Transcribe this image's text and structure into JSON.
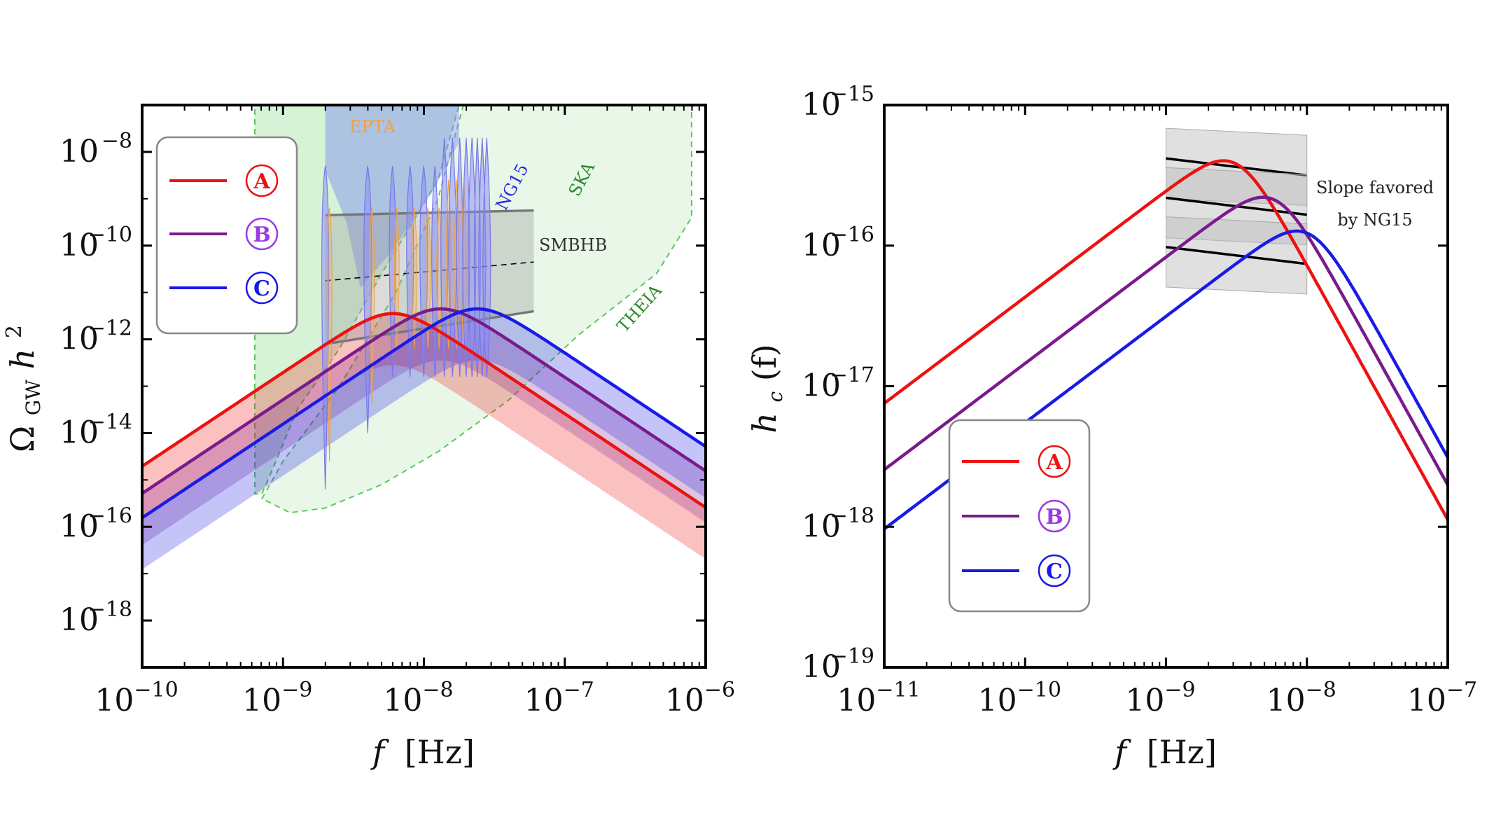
{
  "chart_data": [
    {
      "type": "line",
      "name": "left-panel",
      "xscale": "log",
      "yscale": "log",
      "xlim": [
        1e-10,
        1e-06
      ],
      "ylim": [
        1e-19,
        1e-07
      ],
      "xlabel": "f [Hz]",
      "xlabel_var": "f",
      "xlabel_unit": "[Hz]",
      "ylabel": "Ω_GW h²",
      "ylabel_main": "Ω",
      "ylabel_sub": "GW",
      "ylabel_var": "h",
      "ylabel_sup": "2",
      "x_ticks": [
        {
          "base": "10",
          "exp": "−10",
          "log": -10
        },
        {
          "base": "10",
          "exp": "−9",
          "log": -9
        },
        {
          "base": "10",
          "exp": "−8",
          "log": -8
        },
        {
          "base": "10",
          "exp": "−7",
          "log": -7
        },
        {
          "base": "10",
          "exp": "−6",
          "log": -6
        }
      ],
      "y_ticks": [
        {
          "base": "10",
          "exp": "−8",
          "log": -8
        },
        {
          "base": "10",
          "exp": "−10",
          "log": -10
        },
        {
          "base": "10",
          "exp": "−12",
          "log": -12
        },
        {
          "base": "10",
          "exp": "−14",
          "log": -14
        },
        {
          "base": "10",
          "exp": "−16",
          "log": -16
        },
        {
          "base": "10",
          "exp": "−18",
          "log": -18
        }
      ],
      "series": [
        {
          "name": "A",
          "symbol": "Ⓐ",
          "color": "#ee1111",
          "peak_log_f": -8.22,
          "peak_log_omega": -11.45,
          "band_width_dex": 1.1
        },
        {
          "name": "B",
          "symbol": "Ⓑ",
          "color": "#7a1a8c",
          "peak_log_f": -7.88,
          "peak_log_omega": -11.35,
          "band_width_dex": 1.1
        },
        {
          "name": "C",
          "symbol": "Ⓒ",
          "color": "#1a1ae6",
          "peak_log_f": -7.62,
          "peak_log_omega": -11.35,
          "band_width_dex": 1.1
        }
      ],
      "regions": [
        {
          "name": "SKA",
          "label": "SKA",
          "color": "#2a8a2a"
        },
        {
          "name": "THEIA",
          "label": "THEIA",
          "color": "#2a8a2a"
        },
        {
          "name": "NG15",
          "label": "NG15",
          "color": "#2a2ae0"
        },
        {
          "name": "EPTA",
          "label": "EPTA",
          "color": "#f0a040"
        },
        {
          "name": "SMBHB",
          "label": "SMBHB",
          "color": "#333333",
          "fmin_log": -8.7,
          "fmax_log": -7.22,
          "upper": [
            -9.35,
            -9.25
          ],
          "median": [
            -10.75,
            -10.35
          ],
          "lower": [
            -12.1,
            -11.4
          ]
        }
      ]
    },
    {
      "type": "line",
      "name": "right-panel",
      "xscale": "log",
      "yscale": "log",
      "xlim": [
        1e-11,
        1e-07
      ],
      "ylim": [
        1e-19,
        1e-15
      ],
      "xlabel": "f [Hz]",
      "xlabel_var": "f",
      "xlabel_unit": "[Hz]",
      "ylabel": "h_c(f)",
      "ylabel_main": "h",
      "ylabel_sub": "c",
      "ylabel_arg": "(f)",
      "x_ticks": [
        {
          "base": "10",
          "exp": "−11",
          "log": -11
        },
        {
          "base": "10",
          "exp": "−10",
          "log": -10
        },
        {
          "base": "10",
          "exp": "−9",
          "log": -9
        },
        {
          "base": "10",
          "exp": "−8",
          "log": -8
        },
        {
          "base": "10",
          "exp": "−7",
          "log": -7
        }
      ],
      "y_ticks": [
        {
          "base": "10",
          "exp": "−15",
          "log": -15
        },
        {
          "base": "10",
          "exp": "−16",
          "log": -16
        },
        {
          "base": "10",
          "exp": "−17",
          "log": -17
        },
        {
          "base": "10",
          "exp": "−18",
          "log": -18
        },
        {
          "base": "10",
          "exp": "−19",
          "log": -19
        }
      ],
      "series": [
        {
          "name": "A",
          "symbol": "Ⓐ",
          "color": "#ee1111",
          "peak_log_f": -8.5,
          "peak_log_hc": -15.42
        },
        {
          "name": "B",
          "symbol": "Ⓑ",
          "color": "#7a1a8c",
          "peak_log_f": -8.22,
          "peak_log_hc": -15.68
        },
        {
          "name": "C",
          "symbol": "Ⓒ",
          "color": "#1a1ae6",
          "peak_log_f": -7.98,
          "peak_log_hc": -15.92
        }
      ],
      "ng15_slopes": [
        {
          "center_log_hc": -15.44
        },
        {
          "center_log_hc": -15.72
        },
        {
          "center_log_hc": -16.07
        }
      ],
      "annotation": [
        "Slope favored",
        "by NG15"
      ]
    }
  ]
}
